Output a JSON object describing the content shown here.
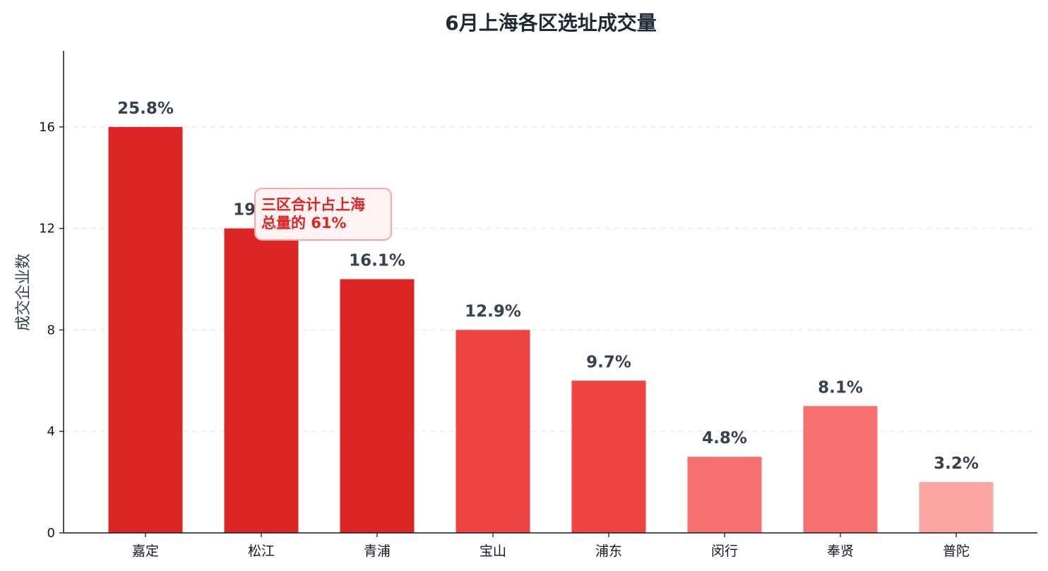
{
  "chart_data": {
    "type": "bar",
    "title": "6月上海各区选址成交量",
    "ylabel": "成交企业数",
    "xlabel": "",
    "categories": [
      "嘉定",
      "松江",
      "青浦",
      "宝山",
      "浦东",
      "闵行",
      "奉贤",
      "普陀"
    ],
    "values": [
      16,
      12,
      10,
      8,
      6,
      3,
      5,
      2
    ],
    "data_labels": [
      "25.8%",
      "19.4%",
      "16.1%",
      "12.9%",
      "9.7%",
      "4.8%",
      "8.1%",
      "3.2%"
    ],
    "bar_colors": [
      "#dc2626",
      "#dc2626",
      "#dc2626",
      "#ef4444",
      "#ef4444",
      "#f87171",
      "#f87171",
      "#fca5a5"
    ],
    "ylim": [
      0,
      19
    ],
    "yticks": [
      0,
      4,
      8,
      12,
      16
    ],
    "grid": "y-dashed",
    "annotation": {
      "line1": "三区合计占上海",
      "line2": "总量的 61%",
      "text_color": "#dc2626",
      "box_fill": "#fef2f2",
      "box_border": "#fca5a5"
    }
  }
}
